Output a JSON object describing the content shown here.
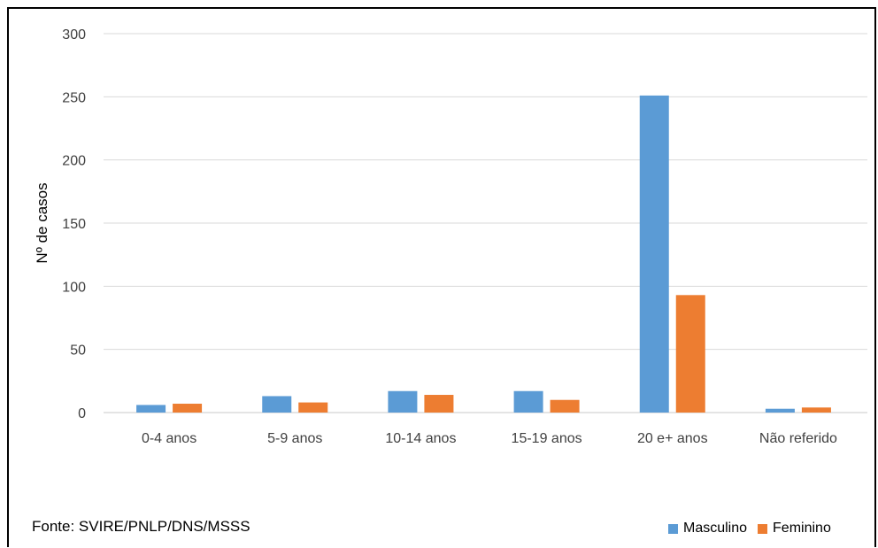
{
  "chart_data": {
    "type": "bar",
    "categories": [
      "0-4 anos",
      "5-9 anos",
      "10-14 anos",
      "15-19 anos",
      "20 e+ anos",
      "Não referido"
    ],
    "series": [
      {
        "name": "Masculino",
        "color": "#5B9BD5",
        "values": [
          6,
          13,
          17,
          17,
          251,
          3
        ]
      },
      {
        "name": "Feminino",
        "color": "#ED7D31",
        "values": [
          7,
          8,
          14,
          10,
          93,
          4
        ]
      }
    ],
    "ylabel": "Nº de casos",
    "ylim": [
      0,
      300
    ],
    "yticks": [
      0,
      50,
      100,
      150,
      200,
      250,
      300
    ],
    "grid": true,
    "legend_position": "bottom-right",
    "source": "Fonte: SVIRE/PNLP/DNS/MSSS"
  }
}
